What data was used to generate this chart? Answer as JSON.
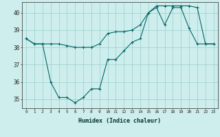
{
  "xlabel": "Humidex (Indice chaleur)",
  "ylabel": "",
  "background_color": "#ceeeed",
  "grid_color": "#99cccc",
  "line_color": "#006666",
  "xlim": [
    -0.5,
    23.5
  ],
  "ylim": [
    34.5,
    40.6
  ],
  "yticks": [
    35,
    36,
    37,
    38,
    39,
    40
  ],
  "xticks": [
    0,
    1,
    2,
    3,
    4,
    5,
    6,
    7,
    8,
    9,
    10,
    11,
    12,
    13,
    14,
    15,
    16,
    17,
    18,
    19,
    20,
    21,
    22,
    23
  ],
  "series1_x": [
    0,
    1,
    2,
    3,
    4,
    5,
    6,
    7,
    8,
    9,
    10,
    11,
    12,
    13,
    14,
    15,
    16,
    17,
    18,
    19,
    20,
    21,
    22,
    23
  ],
  "series1_y": [
    38.5,
    38.2,
    38.2,
    38.2,
    38.2,
    38.1,
    38.0,
    38.0,
    38.0,
    38.2,
    38.8,
    38.9,
    38.9,
    39.0,
    39.3,
    40.0,
    40.4,
    40.4,
    40.4,
    40.4,
    40.4,
    40.3,
    38.2,
    38.2
  ],
  "series2_x": [
    0,
    1,
    2,
    3,
    4,
    5,
    6,
    7,
    8,
    9,
    10,
    11,
    12,
    13,
    14,
    15,
    16,
    17,
    18,
    19,
    20,
    21,
    22,
    23
  ],
  "series2_y": [
    38.5,
    38.2,
    38.2,
    36.0,
    35.1,
    35.1,
    34.8,
    35.1,
    35.6,
    35.6,
    37.3,
    37.3,
    37.8,
    38.3,
    38.5,
    40.0,
    40.3,
    39.3,
    40.3,
    40.3,
    39.1,
    38.2,
    38.2,
    38.2
  ],
  "marker": "+",
  "markersize": 3,
  "linewidth": 0.8
}
